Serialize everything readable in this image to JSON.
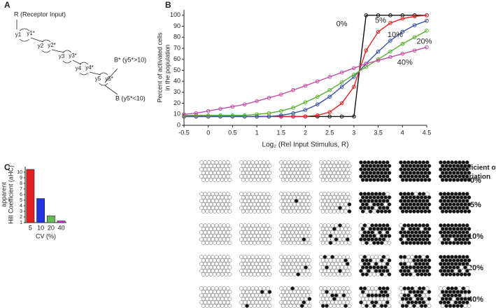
{
  "panels": {
    "a": "A",
    "b": "B",
    "c": "C"
  },
  "diagram": {
    "input": "R (Receptor Input)",
    "nodes": [
      "y1",
      "y1*",
      "y2",
      "y2*",
      "y3",
      "y3*",
      "y4",
      "y4*",
      "y5",
      "y5*"
    ],
    "high": "B* (y5*>10)",
    "low": "B (y5*<10)"
  },
  "chart_data": [
    {
      "type": "line",
      "y_label": [
        "Percent of activated cells",
        "in the population"
      ],
      "x_label": "Log₂ (Rel Input Stimulus, R)",
      "x": [
        -0.5,
        -0.25,
        0,
        0.25,
        0.5,
        0.75,
        1,
        1.25,
        1.5,
        1.75,
        2,
        2.25,
        2.5,
        2.75,
        3,
        3.25,
        3.5,
        3.75,
        4,
        4.25,
        4.5
      ],
      "series": [
        {
          "name": "0%",
          "color": "#111111",
          "values": [
            8,
            8,
            8,
            8,
            8,
            8,
            8,
            8,
            8,
            8,
            8,
            8,
            8,
            8,
            8,
            100,
            100,
            100,
            100,
            100,
            100
          ]
        },
        {
          "name": "5%",
          "color": "#e02020",
          "values": [
            8,
            8,
            8,
            8,
            8,
            8,
            8,
            8,
            8,
            8,
            8,
            9,
            12,
            20,
            35,
            68,
            85,
            93,
            97,
            99,
            100
          ]
        },
        {
          "name": "10%",
          "color": "#3a53a4",
          "values": [
            8,
            8,
            8,
            8,
            8,
            8,
            8,
            8,
            9,
            11,
            14,
            19,
            26,
            35,
            44,
            56,
            67,
            77,
            85,
            91,
            95
          ]
        },
        {
          "name": "20%",
          "color": "#5aaf2e",
          "values": [
            9,
            9,
            9,
            9,
            9,
            9,
            10,
            11,
            13,
            16,
            21,
            26,
            32,
            39,
            46,
            53,
            60,
            67,
            74,
            80,
            86
          ]
        },
        {
          "name": "40%",
          "color": "#c44fa6",
          "values": [
            10,
            11,
            13,
            15,
            17,
            19,
            22,
            25,
            28,
            32,
            36,
            40,
            44,
            48,
            52,
            56,
            59,
            62,
            65,
            68,
            71
          ]
        }
      ],
      "xlim": [
        -0.5,
        4.5
      ],
      "xticks": [
        -0.5,
        0,
        0.5,
        1,
        1.5,
        2,
        2.5,
        3,
        3.5,
        4,
        4.5
      ],
      "ylim": [
        0,
        105
      ],
      "yticks": [
        0,
        10,
        20,
        30,
        40,
        50,
        60,
        70,
        80,
        90,
        100
      ]
    },
    {
      "type": "bar",
      "y_label": [
        "apparent",
        "Hill Coefficient (aHC)"
      ],
      "x_label": "CV (%)",
      "categories": [
        "5",
        "10",
        "20",
        "40"
      ],
      "values": [
        10.5,
        5.3,
        2.2,
        1.3
      ],
      "colors": [
        "#e02020",
        "#2233dd",
        "#66bb55",
        "#cc33cc"
      ],
      "ylim": [
        1,
        11
      ],
      "yticks": [
        1,
        2,
        3,
        4,
        5,
        6,
        7,
        8,
        9,
        10
      ]
    }
  ],
  "cells": {
    "header": [
      "Coefficient of",
      "Variation"
    ],
    "rows": [
      {
        "label": "0%",
        "color": "#111111",
        "activated": [
          0,
          0,
          0,
          0,
          48,
          48,
          48
        ]
      },
      {
        "label": "5%",
        "color": "#e02020",
        "activated": [
          0,
          0,
          1,
          3,
          42,
          46,
          48
        ]
      },
      {
        "label": "10%",
        "color": "#3a53a4",
        "activated": [
          0,
          0,
          1,
          6,
          36,
          44,
          46
        ]
      },
      {
        "label": "20%",
        "color": "#5aaf2e",
        "activated": [
          0,
          0,
          2,
          6,
          28,
          38,
          44
        ]
      },
      {
        "label": "40%",
        "color": "#c44fa6",
        "activated": [
          0,
          3,
          4,
          8,
          22,
          30,
          36
        ]
      }
    ]
  }
}
